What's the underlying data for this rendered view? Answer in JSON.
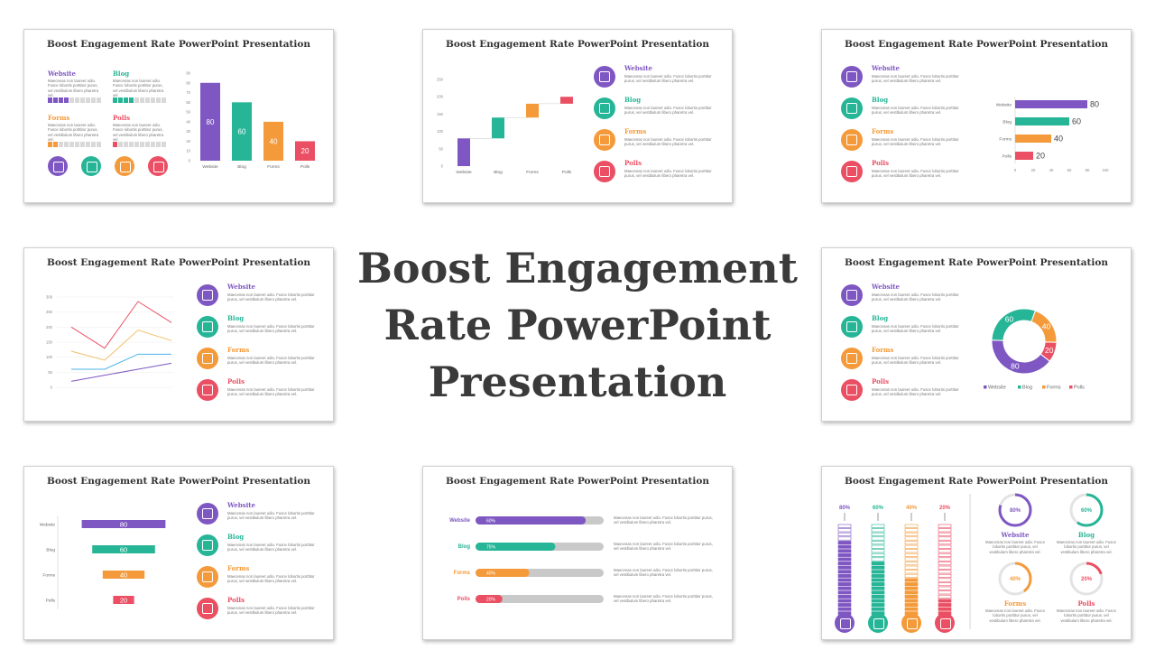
{
  "main_title": "Boost Engagement Rate PowerPoint Presentation",
  "slide_title": "Boost Engagement Rate PowerPoint Presentation",
  "description": "Maecenas non laoreet odio. Fusce lobortis porttitor purus, vel vestibulum libero pharetra vel.",
  "colors": {
    "website": "#7e57c2",
    "blog": "#26b596",
    "forms": "#f49a3a",
    "polls": "#ea4f63"
  },
  "icons": [
    "website-laptop-icon",
    "blog-monitor-icon",
    "forms-document-icon",
    "polls-checklist-icon"
  ],
  "categories": [
    "Website",
    "Blog",
    "Forms",
    "Polls"
  ],
  "chart_data": [
    {
      "type": "bar",
      "categories": [
        "Website",
        "Blog",
        "Forms",
        "Polls"
      ],
      "values": [
        80,
        60,
        40,
        20
      ],
      "ylim": [
        0,
        90
      ],
      "yticks": [
        "0",
        "10",
        "20",
        "30",
        "40",
        "50",
        "60",
        "70",
        "80",
        "90"
      ],
      "value_labels": [
        "80",
        "60",
        "40",
        "20"
      ]
    },
    {
      "type": "bar",
      "subtype": "waterfall",
      "categories": [
        "Website",
        "Blog",
        "Forms",
        "Polls"
      ],
      "values": [
        80,
        60,
        40,
        20
      ],
      "ylim": [
        0,
        250
      ],
      "yticks": [
        "0",
        "50",
        "100",
        "150",
        "200",
        "250"
      ]
    },
    {
      "type": "bar",
      "orientation": "horizontal",
      "categories": [
        "Website",
        "Blog",
        "Forms",
        "Polls"
      ],
      "values": [
        80,
        60,
        40,
        20
      ],
      "xlim": [
        0,
        100
      ],
      "xticks": [
        "0",
        "20",
        "40",
        "60",
        "80",
        "100"
      ],
      "value_labels": [
        "80",
        "60",
        "40",
        "20"
      ]
    },
    {
      "type": "line",
      "x": [
        1,
        2,
        3,
        4
      ],
      "ylim": [
        0,
        300
      ],
      "yticks": [
        "0",
        "50",
        "100",
        "150",
        "200",
        "250",
        "300"
      ],
      "series": [
        {
          "values": [
            20,
            40,
            60,
            80
          ]
        },
        {
          "values": [
            60,
            60,
            110,
            110
          ]
        },
        {
          "values": [
            120,
            90,
            190,
            155
          ]
        },
        {
          "values": [
            200,
            130,
            285,
            215
          ]
        }
      ]
    },
    {
      "type": "pie",
      "subtype": "donut",
      "categories": [
        "Website",
        "Blog",
        "Forms",
        "Polls"
      ],
      "values": [
        80,
        60,
        40,
        20
      ],
      "legend": [
        "Website",
        "Blog",
        "Forms",
        "Polls"
      ]
    },
    {
      "type": "bar",
      "orientation": "horizontal",
      "subtype": "funnel",
      "categories": [
        "Website",
        "Blog",
        "Forms",
        "Polls"
      ],
      "values": [
        80,
        60,
        40,
        20
      ],
      "value_labels": [
        "80",
        "60",
        "40",
        "20"
      ]
    },
    {
      "type": "bar",
      "subtype": "progress",
      "categories": [
        "Website",
        "Blog",
        "Forms",
        "Polls"
      ],
      "values": [
        60,
        75,
        40,
        20
      ],
      "value_labels": [
        "60%",
        "75%",
        "40%",
        "20%"
      ]
    },
    {
      "type": "bar",
      "subtype": "stacked-level-and-rings",
      "categories": [
        "Website",
        "Blog",
        "Forms",
        "Polls"
      ],
      "values": [
        80,
        60,
        40,
        20
      ],
      "value_labels": [
        "80%",
        "60%",
        "40%",
        "20%"
      ]
    }
  ]
}
